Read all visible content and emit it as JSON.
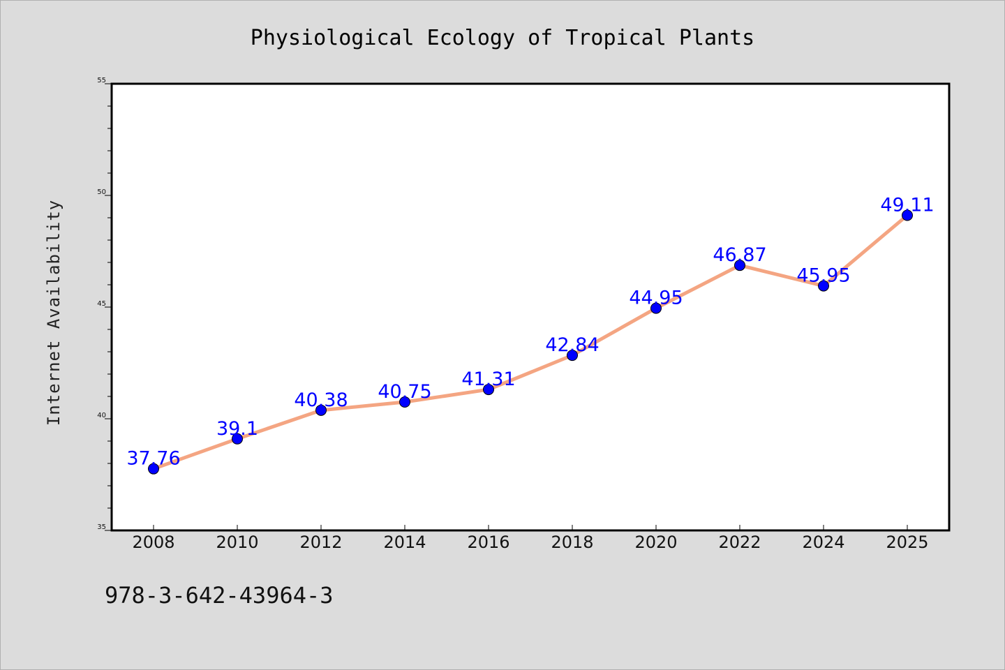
{
  "chart_data": {
    "type": "line",
    "title": "Physiological Ecology of Tropical Plants",
    "xlabel": "",
    "ylabel": "Internet Availability",
    "categories": [
      "2008",
      "2010",
      "2012",
      "2014",
      "2016",
      "2018",
      "2020",
      "2022",
      "2024",
      "2025"
    ],
    "series": [
      {
        "values": [
          37.76,
          39.1,
          40.38,
          40.75,
          41.31,
          42.84,
          44.95,
          46.87,
          45.95,
          49.11
        ],
        "data_labels": [
          "37.76",
          "39.1",
          "40.38",
          "40.75",
          "41.31",
          "42.84",
          "44.95",
          "46.87",
          "45.95",
          "49.11"
        ],
        "line_color": "#f4a582",
        "marker_color": "#0000ff"
      }
    ],
    "ylim": [
      35,
      55
    ],
    "yticks": [
      "35",
      "40",
      "45",
      "50",
      "55"
    ],
    "grid": false,
    "legend": "none"
  },
  "footer": {
    "isbn": "978-3-642-43964-3"
  },
  "colors": {
    "background": "#dcdcdc",
    "plot_background": "#ffffff",
    "line": "#f4a582",
    "marker": "#0000ff",
    "data_label": "#0000ff"
  }
}
